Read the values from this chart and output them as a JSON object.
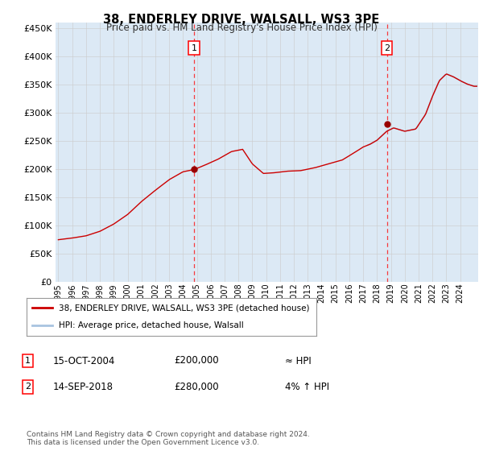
{
  "title": "38, ENDERLEY DRIVE, WALSALL, WS3 3PE",
  "subtitle": "Price paid vs. HM Land Registry's House Price Index (HPI)",
  "background_color": "#ffffff",
  "plot_bg_color": "#dce9f5",
  "grid_color": "#cccccc",
  "hpi_color": "#a8c4e0",
  "price_color": "#cc0000",
  "marker_color": "#990000",
  "ylim": [
    0,
    460000
  ],
  "yticks": [
    0,
    50000,
    100000,
    150000,
    200000,
    250000,
    300000,
    350000,
    400000,
    450000
  ],
  "xlim_start": 1994.8,
  "xlim_end": 2025.3,
  "sale1_x": 2004.79,
  "sale1_y": 200000,
  "sale1_label": "1",
  "sale2_x": 2018.71,
  "sale2_y": 280000,
  "sale2_label": "2",
  "legend_line1": "38, ENDERLEY DRIVE, WALSALL, WS3 3PE (detached house)",
  "legend_line2": "HPI: Average price, detached house, Walsall",
  "table_row1_num": "1",
  "table_row1_date": "15-OCT-2004",
  "table_row1_price": "£200,000",
  "table_row1_hpi": "≈ HPI",
  "table_row2_num": "2",
  "table_row2_date": "14-SEP-2018",
  "table_row2_price": "£280,000",
  "table_row2_hpi": "4% ↑ HPI",
  "footer": "Contains HM Land Registry data © Crown copyright and database right 2024.\nThis data is licensed under the Open Government Licence v3.0."
}
